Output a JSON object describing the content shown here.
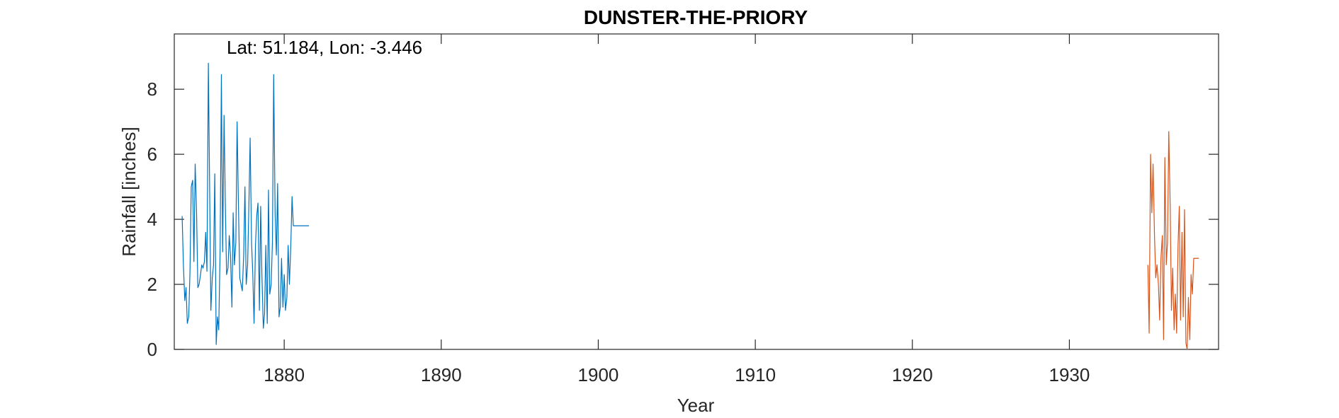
{
  "chart_data": {
    "type": "line",
    "title": "DUNSTER-THE-PRIORY",
    "xlabel": "Year",
    "ylabel": "Rainfall [inches]",
    "annotation": "Lat: 51.184, Lon: -3.446",
    "xlim": [
      1873,
      1939.5
    ],
    "ylim": [
      0,
      9.7
    ],
    "xticks": [
      1880,
      1890,
      1900,
      1910,
      1920,
      1930
    ],
    "xtick_labels": [
      "1880",
      "1890",
      "1900",
      "1910",
      "1920",
      "1930"
    ],
    "yticks": [
      0,
      2,
      4,
      6,
      8
    ],
    "ytick_labels": [
      "0",
      "2",
      "4",
      "6",
      "8"
    ],
    "grid": false,
    "series": [
      {
        "color": "#0072BD",
        "x": [
          1873.5,
          1873.58,
          1873.67,
          1873.75,
          1873.83,
          1873.92,
          1874.0,
          1874.08,
          1874.17,
          1874.25,
          1874.33,
          1874.42,
          1874.5,
          1874.58,
          1874.67,
          1874.75,
          1874.83,
          1874.92,
          1875.0,
          1875.08,
          1875.17,
          1875.25,
          1875.33,
          1875.42,
          1875.5,
          1875.58,
          1875.67,
          1875.75,
          1875.83,
          1875.92,
          1876.0,
          1876.08,
          1876.17,
          1876.25,
          1876.33,
          1876.42,
          1876.5,
          1876.58,
          1876.67,
          1876.75,
          1876.83,
          1876.92,
          1877.0,
          1877.08,
          1877.17,
          1877.25,
          1877.33,
          1877.42,
          1877.5,
          1877.58,
          1877.67,
          1877.75,
          1877.83,
          1877.92,
          1878.0,
          1878.08,
          1878.17,
          1878.25,
          1878.33,
          1878.42,
          1878.5,
          1878.58,
          1878.67,
          1878.75,
          1878.83,
          1878.92,
          1879.0,
          1879.08,
          1879.17,
          1879.25,
          1879.33,
          1879.42,
          1879.5,
          1879.58,
          1879.67,
          1879.75,
          1879.83,
          1879.92,
          1880.0,
          1880.08,
          1880.17,
          1880.25,
          1880.33,
          1880.42,
          1880.5,
          1880.58,
          1880.67,
          1880.75,
          1880.83,
          1880.92,
          1881.0,
          1881.08,
          1881.17,
          1881.25,
          1881.33,
          1881.42,
          1881.5,
          1881.58
        ],
        "y": [
          4.1,
          2.6,
          1.5,
          1.9,
          0.8,
          1.0,
          2.4,
          5.0,
          5.2,
          2.7,
          5.7,
          4.2,
          1.9,
          2.0,
          2.3,
          2.6,
          2.5,
          2.7,
          3.6,
          2.4,
          8.8,
          5.0,
          1.2,
          2.2,
          2.6,
          5.4,
          0.15,
          1.0,
          0.6,
          3.1,
          8.45,
          3.0,
          7.2,
          4.5,
          2.3,
          2.5,
          3.5,
          2.9,
          1.3,
          4.2,
          2.6,
          3.3,
          7.0,
          4.6,
          2.2,
          2.0,
          1.8,
          2.9,
          5.0,
          2.0,
          2.6,
          4.4,
          6.5,
          3.3,
          2.3,
          0.8,
          3.2,
          4.1,
          4.5,
          1.2,
          4.4,
          2.3,
          0.65,
          1.1,
          3.2,
          0.8,
          4.9,
          1.7,
          2.0,
          3.3,
          8.45,
          4.2,
          2.9,
          5.1,
          1.0,
          1.3,
          2.8,
          1.3,
          2.3,
          1.2,
          1.6,
          3.2,
          2.0,
          3.2,
          4.7,
          3.8,
          3.8,
          3.8,
          3.8,
          3.8,
          3.8,
          3.8,
          3.8,
          3.8,
          3.8,
          3.8,
          3.8,
          3.8
        ]
      },
      {
        "color": "#D95319",
        "x": [
          1935.0,
          1935.08,
          1935.17,
          1935.25,
          1935.33,
          1935.42,
          1935.5,
          1935.58,
          1935.67,
          1935.75,
          1935.83,
          1935.92,
          1936.0,
          1936.08,
          1936.17,
          1936.25,
          1936.33,
          1936.42,
          1936.5,
          1936.58,
          1936.67,
          1936.75,
          1936.83,
          1936.92,
          1937.0,
          1937.08,
          1937.17,
          1937.25,
          1937.33,
          1937.42,
          1937.5,
          1937.58,
          1937.67,
          1937.75,
          1937.83,
          1937.92,
          1938.0,
          1938.08,
          1938.17,
          1938.25
        ],
        "y": [
          2.6,
          0.5,
          6.0,
          4.2,
          5.7,
          3.5,
          2.2,
          2.6,
          2.0,
          0.9,
          2.8,
          3.5,
          0.3,
          5.9,
          2.6,
          3.3,
          6.7,
          4.4,
          1.2,
          2.5,
          0.6,
          1.7,
          0.5,
          3.2,
          4.4,
          0.9,
          3.6,
          1.0,
          4.3,
          0.2,
          0.0,
          1.6,
          0.3,
          2.3,
          1.7,
          2.8,
          2.8,
          2.8,
          2.8,
          2.8
        ]
      }
    ]
  }
}
